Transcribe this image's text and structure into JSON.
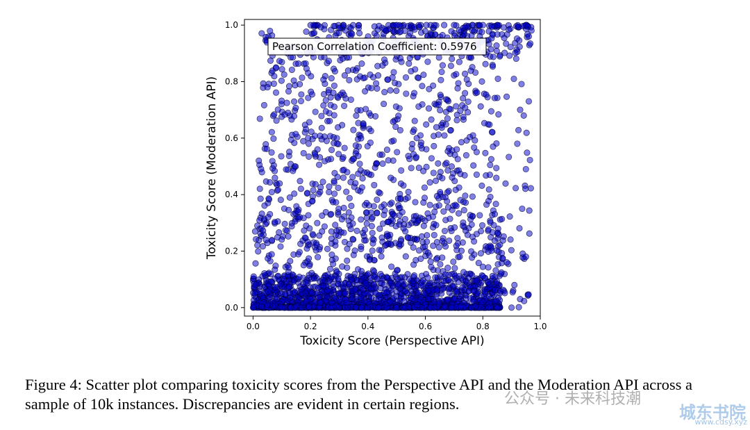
{
  "chart_data": {
    "type": "scatter",
    "title": "",
    "xlabel": "Toxicity Score (Perspective API)",
    "ylabel": "Toxicity Score (Moderation API)",
    "xlim": [
      -0.03,
      1.0
    ],
    "ylim": [
      -0.03,
      1.02
    ],
    "xticks": [
      "0.0",
      "0.2",
      "0.4",
      "0.6",
      "0.8",
      "1.0"
    ],
    "yticks": [
      "0.0",
      "0.2",
      "0.4",
      "0.6",
      "0.8",
      "1.0"
    ],
    "marker_color": "#0000CD",
    "marker_edge_color": "#000033",
    "marker_alpha": 0.5,
    "grid": false,
    "legend": "none",
    "annotation": "Pearson Correlation Coefficient: 0.5976",
    "pearson_r": 0.5976,
    "sample_size": 10000,
    "points_description": "dense band at y≈0 for x in 0.0–0.85; sparse scatter above; cluster at y≈1.0 for x in 0.2–0.95",
    "sample_points": [
      [
        0.0,
        0.0
      ],
      [
        0.05,
        0.01
      ],
      [
        0.1,
        0.02
      ],
      [
        0.2,
        0.03
      ],
      [
        0.3,
        0.05
      ],
      [
        0.4,
        0.02
      ],
      [
        0.5,
        0.04
      ],
      [
        0.6,
        0.01
      ],
      [
        0.7,
        0.03
      ],
      [
        0.8,
        0.02
      ],
      [
        0.85,
        0.0
      ],
      [
        0.9,
        0.0
      ],
      [
        0.93,
        0.03
      ],
      [
        0.91,
        0.08
      ],
      [
        0.95,
        0.18
      ],
      [
        0.02,
        0.52
      ],
      [
        0.05,
        0.78
      ],
      [
        0.08,
        0.85
      ],
      [
        0.12,
        0.9
      ],
      [
        0.3,
        0.99
      ],
      [
        0.5,
        1.0
      ],
      [
        0.7,
        1.0
      ],
      [
        0.85,
        1.0
      ],
      [
        0.95,
        1.0
      ],
      [
        0.96,
        0.96
      ],
      [
        0.96,
        0.73
      ],
      [
        0.95,
        0.49
      ],
      [
        0.93,
        0.7
      ],
      [
        0.92,
        0.58
      ]
    ]
  },
  "caption": "Figure 4: Scatter plot comparing toxicity scores from the Perspective API and the Moderation API across a sample of 10k instances. Discrepancies are evident in certain regions.",
  "watermark": {
    "text": "公众号 · 未来科技潮",
    "site": "城东书院",
    "url": "www.cdsy.xyz"
  }
}
